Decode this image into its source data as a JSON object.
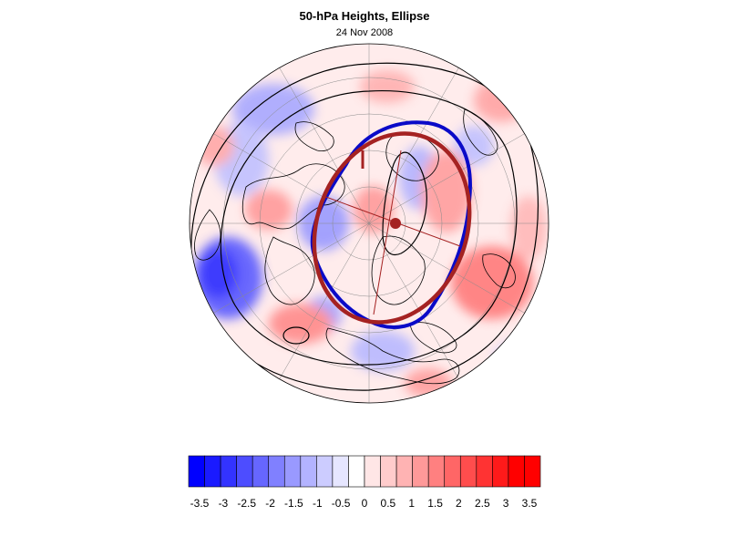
{
  "header": {
    "title": "50-hPa Heights, Ellipse",
    "date": "24 Nov 2008"
  },
  "map": {
    "projection": "polar-stereographic-north",
    "field": "50-hPa height anomaly",
    "contour_color": "#000000",
    "coastline_color": "#000000",
    "ellipse_observed_color": "#0a0ac8",
    "ellipse_fit_color": "#a52222",
    "center_marker_color": "#a52222"
  },
  "colorbar": {
    "tick_labels": [
      "-3.5",
      "-3",
      "-2.5",
      "-2",
      "-1.5",
      "-1",
      "-0.5",
      "0",
      "0.5",
      "1",
      "1.5",
      "2",
      "2.5",
      "3",
      "3.5"
    ],
    "colors": [
      "#0000ff",
      "#1a1aff",
      "#3333ff",
      "#4d4dff",
      "#6666ff",
      "#8080ff",
      "#9999ff",
      "#b3b3ff",
      "#ccccff",
      "#e6e6ff",
      "#ffffff",
      "#ffe6e6",
      "#ffcccc",
      "#ffb3b3",
      "#ff9999",
      "#ff8080",
      "#ff6666",
      "#ff4d4d",
      "#ff3333",
      "#ff1a1a",
      "#ff0000",
      "#ff0000"
    ],
    "min": -3.5,
    "max": 3.5
  }
}
